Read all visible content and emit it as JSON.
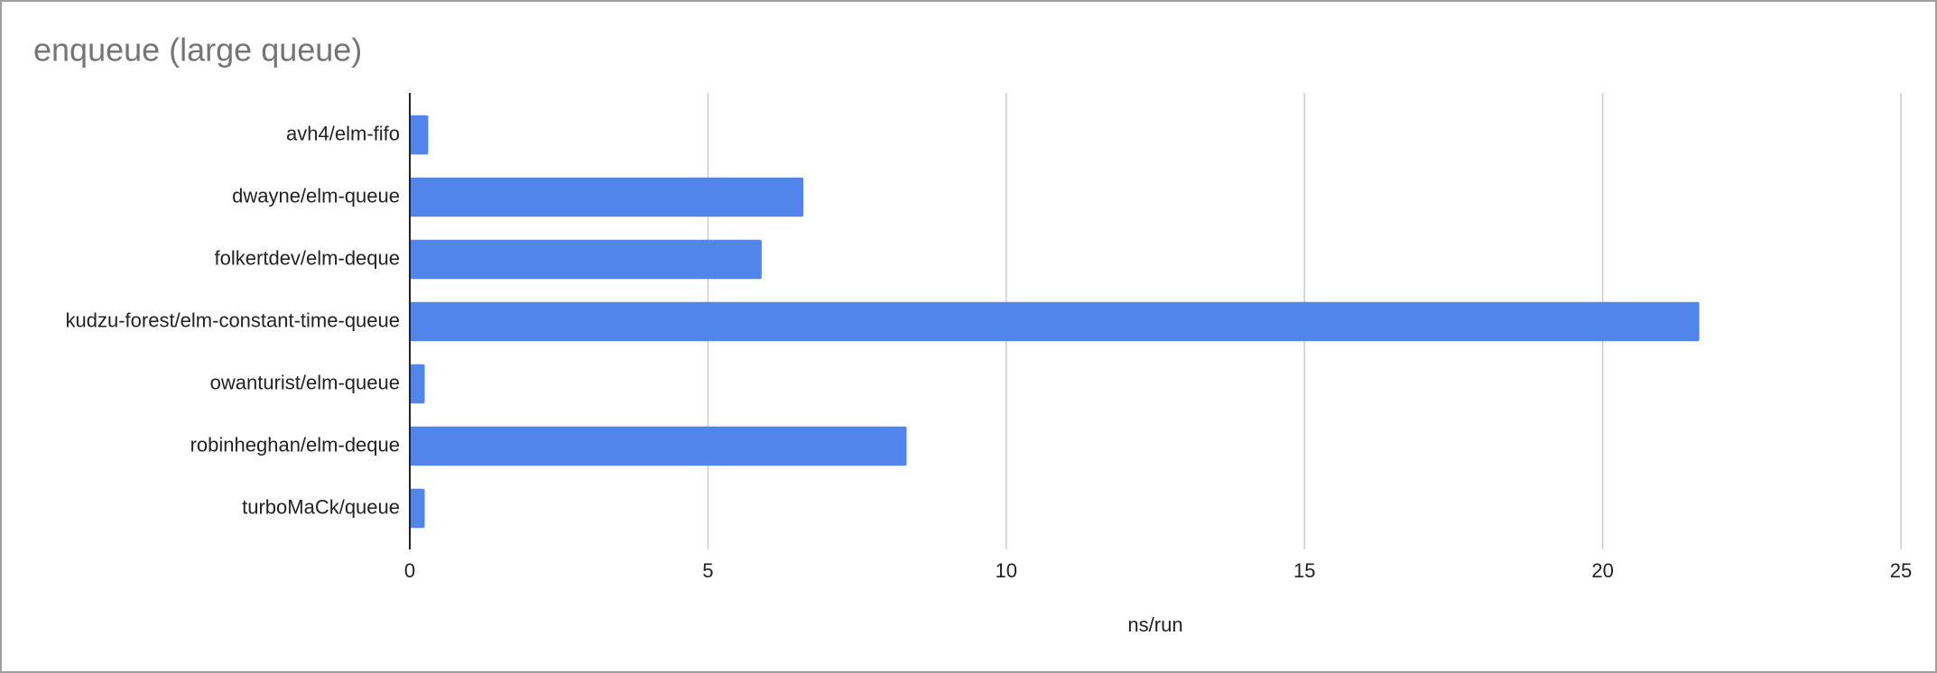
{
  "chart_data": {
    "type": "bar",
    "orientation": "horizontal",
    "title": "enqueue (large queue)",
    "categories": [
      "avh4/elm-fifo",
      "dwayne/elm-queue",
      "folkertdev/elm-deque",
      "kudzu-forest/elm-constant-time-queue",
      "owanturist/elm-queue",
      "robinheghan/elm-deque",
      "turboMaCk/queue"
    ],
    "values": [
      0.31,
      6.6,
      5.9,
      21.62,
      0.25,
      8.33,
      0.25
    ],
    "color": "#5285ec",
    "xlabel": "ns/run",
    "xlim": [
      0,
      25
    ],
    "xticks": [
      0,
      5,
      10,
      15,
      20,
      25
    ],
    "grid": true
  }
}
